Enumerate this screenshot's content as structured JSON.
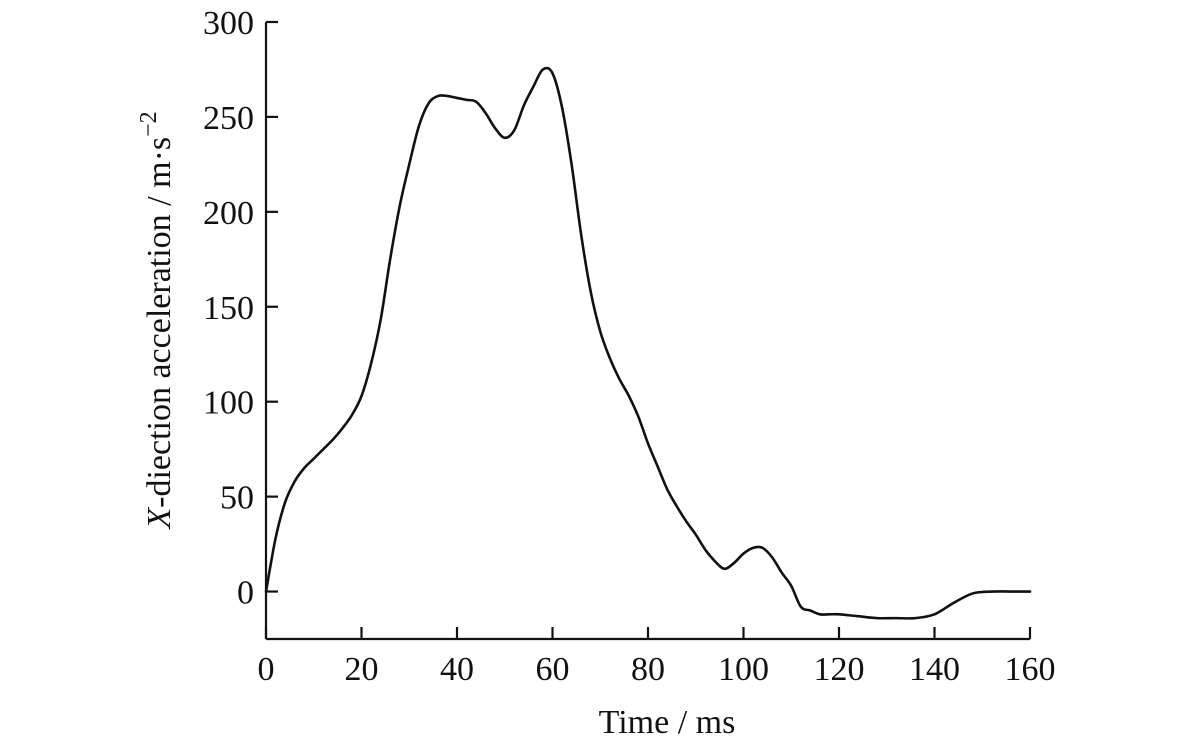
{
  "chart_data": {
    "type": "line",
    "title": "",
    "xlabel": "Time / ms",
    "ylabel": {
      "italic": "X",
      "text": "-diection acceleration / m·s",
      "superscript": "−2"
    },
    "xlim": [
      0,
      160
    ],
    "ylim": [
      -25,
      300
    ],
    "xticks": [
      0,
      20,
      40,
      60,
      80,
      100,
      120,
      140,
      160
    ],
    "yticks": [
      0,
      50,
      100,
      150,
      200,
      250,
      300
    ],
    "grid": false,
    "legend": "none",
    "color": "#111111",
    "series": [
      {
        "x": [
          0,
          2,
          4,
          6,
          8,
          10,
          12,
          14,
          16,
          18,
          20,
          22,
          24,
          26,
          28,
          30,
          32,
          34,
          36,
          38,
          40,
          42,
          44,
          46,
          48,
          50,
          52,
          54,
          56,
          58,
          60,
          62,
          64,
          66,
          68,
          70,
          72,
          74,
          76,
          78,
          80,
          82,
          84,
          86,
          88,
          90,
          92,
          94,
          96,
          98,
          100,
          102,
          104,
          106,
          108,
          110,
          112,
          114,
          116,
          118,
          120,
          124,
          128,
          132,
          136,
          140,
          144,
          148,
          152,
          156,
          160
        ],
        "y": [
          0,
          28,
          47,
          58,
          65,
          70,
          75,
          80,
          86,
          93,
          103,
          120,
          143,
          175,
          203,
          225,
          245,
          257,
          261,
          261,
          260,
          259,
          258,
          252,
          244,
          239,
          243,
          256,
          266,
          275,
          273,
          255,
          225,
          188,
          158,
          137,
          123,
          112,
          103,
          92,
          78,
          66,
          54,
          45,
          37,
          30,
          22,
          16,
          12,
          15,
          20,
          23,
          23,
          18,
          10,
          3,
          -8,
          -10,
          -12,
          -12,
          -12,
          -13,
          -14,
          -14,
          -14,
          -12,
          -6,
          -1,
          0,
          0,
          0
        ]
      }
    ]
  }
}
